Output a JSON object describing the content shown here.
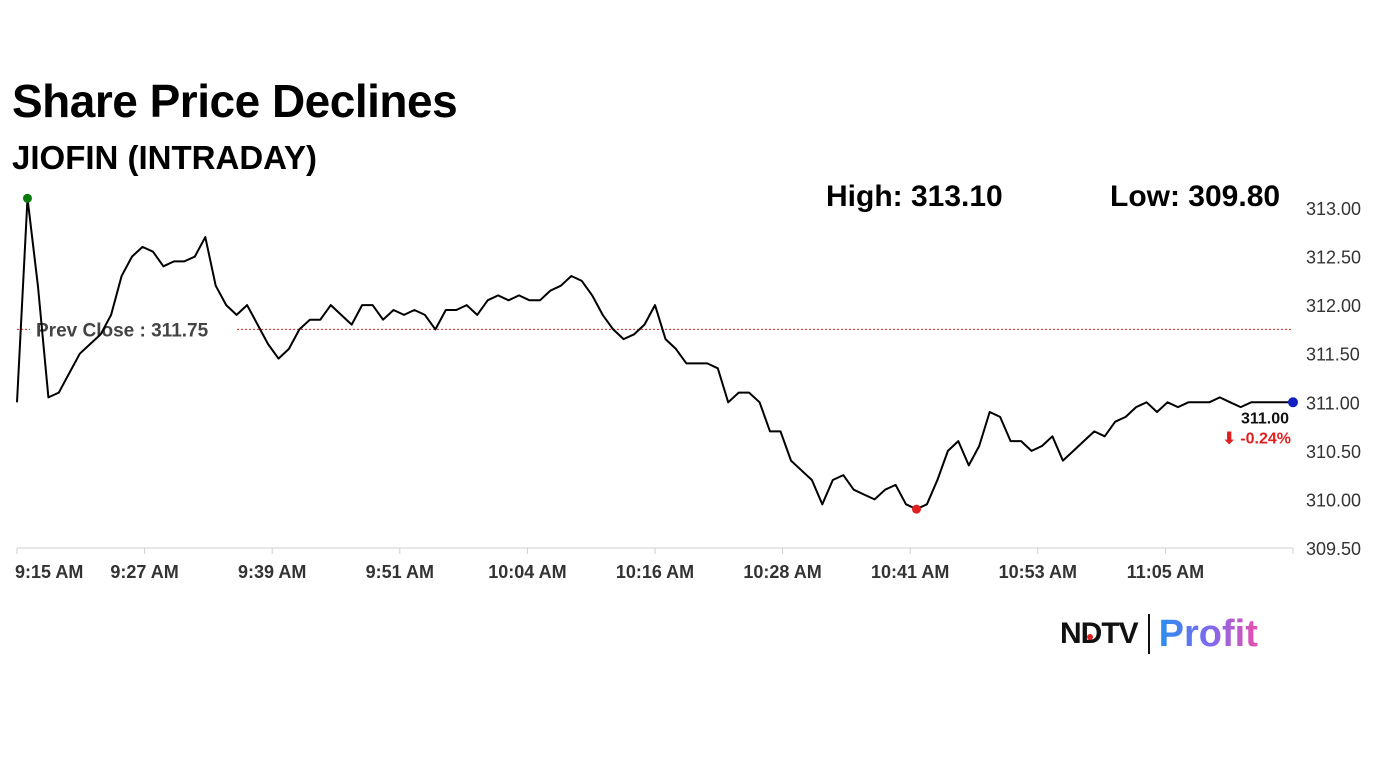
{
  "title": "Share Price Declines",
  "subtitle": "JIOFIN (INTRADAY)",
  "high_label": "High: 313.10",
  "low_label": "Low: 309.80",
  "brand": {
    "left": "NDTV",
    "right": "Profit"
  },
  "colors": {
    "line": "#000000",
    "prev_close": "#e02020",
    "high_marker": "#0a7a0a",
    "low_marker": "#e02020",
    "last_marker": "#1020c0",
    "change": "#e02020"
  },
  "chart_data": {
    "type": "line",
    "title": "JIOFIN (INTRADAY)",
    "ylim": [
      309.5,
      313.0
    ],
    "yticks": [
      "313.00",
      "312.50",
      "312.00",
      "311.50",
      "311.00",
      "310.50",
      "310.00",
      "309.50"
    ],
    "xticks": [
      "9:15 AM",
      "9:27 AM",
      "9:39 AM",
      "9:51 AM",
      "10:04 AM",
      "10:16 AM",
      "10:28 AM",
      "10:41 AM",
      "10:53 AM",
      "11:05 AM"
    ],
    "prev_close": {
      "label": "Prev Close : 311.75",
      "value": 311.75
    },
    "high": 313.1,
    "low": 309.8,
    "last": {
      "value_label": "311.00",
      "change_label": "⬇ -0.24%",
      "value": 311.0
    },
    "series": [
      {
        "x": [
          "9:15",
          "9:16",
          "9:17",
          "9:18",
          "9:19",
          "9:20",
          "9:21",
          "9:22",
          "9:23",
          "9:24",
          "9:25",
          "9:26",
          "9:27",
          "9:28",
          "9:29",
          "9:30",
          "9:31",
          "9:32",
          "9:33",
          "9:34",
          "9:35",
          "9:36",
          "9:37",
          "9:38",
          "9:39",
          "9:40",
          "9:41",
          "9:42",
          "9:43",
          "9:44",
          "9:45",
          "9:46",
          "9:47",
          "9:48",
          "9:49",
          "9:50",
          "9:51",
          "9:52",
          "9:53",
          "9:54",
          "9:55",
          "9:56",
          "9:57",
          "9:58",
          "9:59",
          "10:00",
          "10:01",
          "10:02",
          "10:03",
          "10:04",
          "10:05",
          "10:06",
          "10:07",
          "10:08",
          "10:09",
          "10:10",
          "10:11",
          "10:12",
          "10:13",
          "10:14",
          "10:15",
          "10:16",
          "10:17",
          "10:18",
          "10:19",
          "10:20",
          "10:21",
          "10:22",
          "10:23",
          "10:24",
          "10:25",
          "10:26",
          "10:27",
          "10:28",
          "10:29",
          "10:30",
          "10:31",
          "10:32",
          "10:33",
          "10:34",
          "10:35",
          "10:36",
          "10:37",
          "10:38",
          "10:39",
          "10:40",
          "10:41",
          "10:42",
          "10:43",
          "10:44",
          "10:45",
          "10:46",
          "10:47",
          "10:48",
          "10:49",
          "10:50",
          "10:51",
          "10:52",
          "10:53",
          "10:54",
          "10:55",
          "10:56",
          "10:57",
          "10:58",
          "10:59",
          "11:00",
          "11:01",
          "11:02",
          "11:03",
          "11:04",
          "11:05",
          "11:06",
          "11:07",
          "11:08",
          "11:09",
          "11:10",
          "11:11",
          "11:12",
          "11:13",
          "11:14",
          "11:15",
          "11:16",
          "11:17"
        ],
        "values": [
          311.0,
          313.1,
          312.2,
          311.05,
          311.1,
          311.3,
          311.5,
          311.6,
          311.7,
          311.9,
          312.3,
          312.5,
          312.6,
          312.55,
          312.4,
          312.45,
          312.45,
          312.5,
          312.7,
          312.2,
          312.0,
          311.9,
          312.0,
          311.8,
          311.6,
          311.45,
          311.55,
          311.75,
          311.85,
          311.85,
          312.0,
          311.9,
          311.8,
          312.0,
          312.0,
          311.85,
          311.95,
          311.9,
          311.95,
          311.9,
          311.75,
          311.95,
          311.95,
          312.0,
          311.9,
          312.05,
          312.1,
          312.05,
          312.1,
          312.05,
          312.05,
          312.15,
          312.2,
          312.3,
          312.25,
          312.1,
          311.9,
          311.75,
          311.65,
          311.7,
          311.8,
          312.0,
          311.65,
          311.55,
          311.4,
          311.4,
          311.4,
          311.35,
          311.0,
          311.1,
          311.1,
          311.0,
          310.7,
          310.7,
          310.4,
          310.3,
          310.2,
          309.95,
          310.2,
          310.25,
          310.1,
          310.05,
          310.0,
          310.1,
          310.15,
          309.95,
          309.9,
          309.95,
          310.2,
          310.5,
          310.6,
          310.35,
          310.55,
          310.9,
          310.85,
          310.6,
          310.6,
          310.5,
          310.55,
          310.65,
          310.4,
          310.5,
          310.6,
          310.7,
          310.65,
          310.8,
          310.85,
          310.95,
          311.0,
          310.9,
          311.0,
          310.95,
          311.0,
          311.0,
          311.0,
          311.05,
          311.0,
          310.95,
          311.0,
          311.0,
          311.0,
          311.0,
          311.0
        ]
      }
    ]
  }
}
